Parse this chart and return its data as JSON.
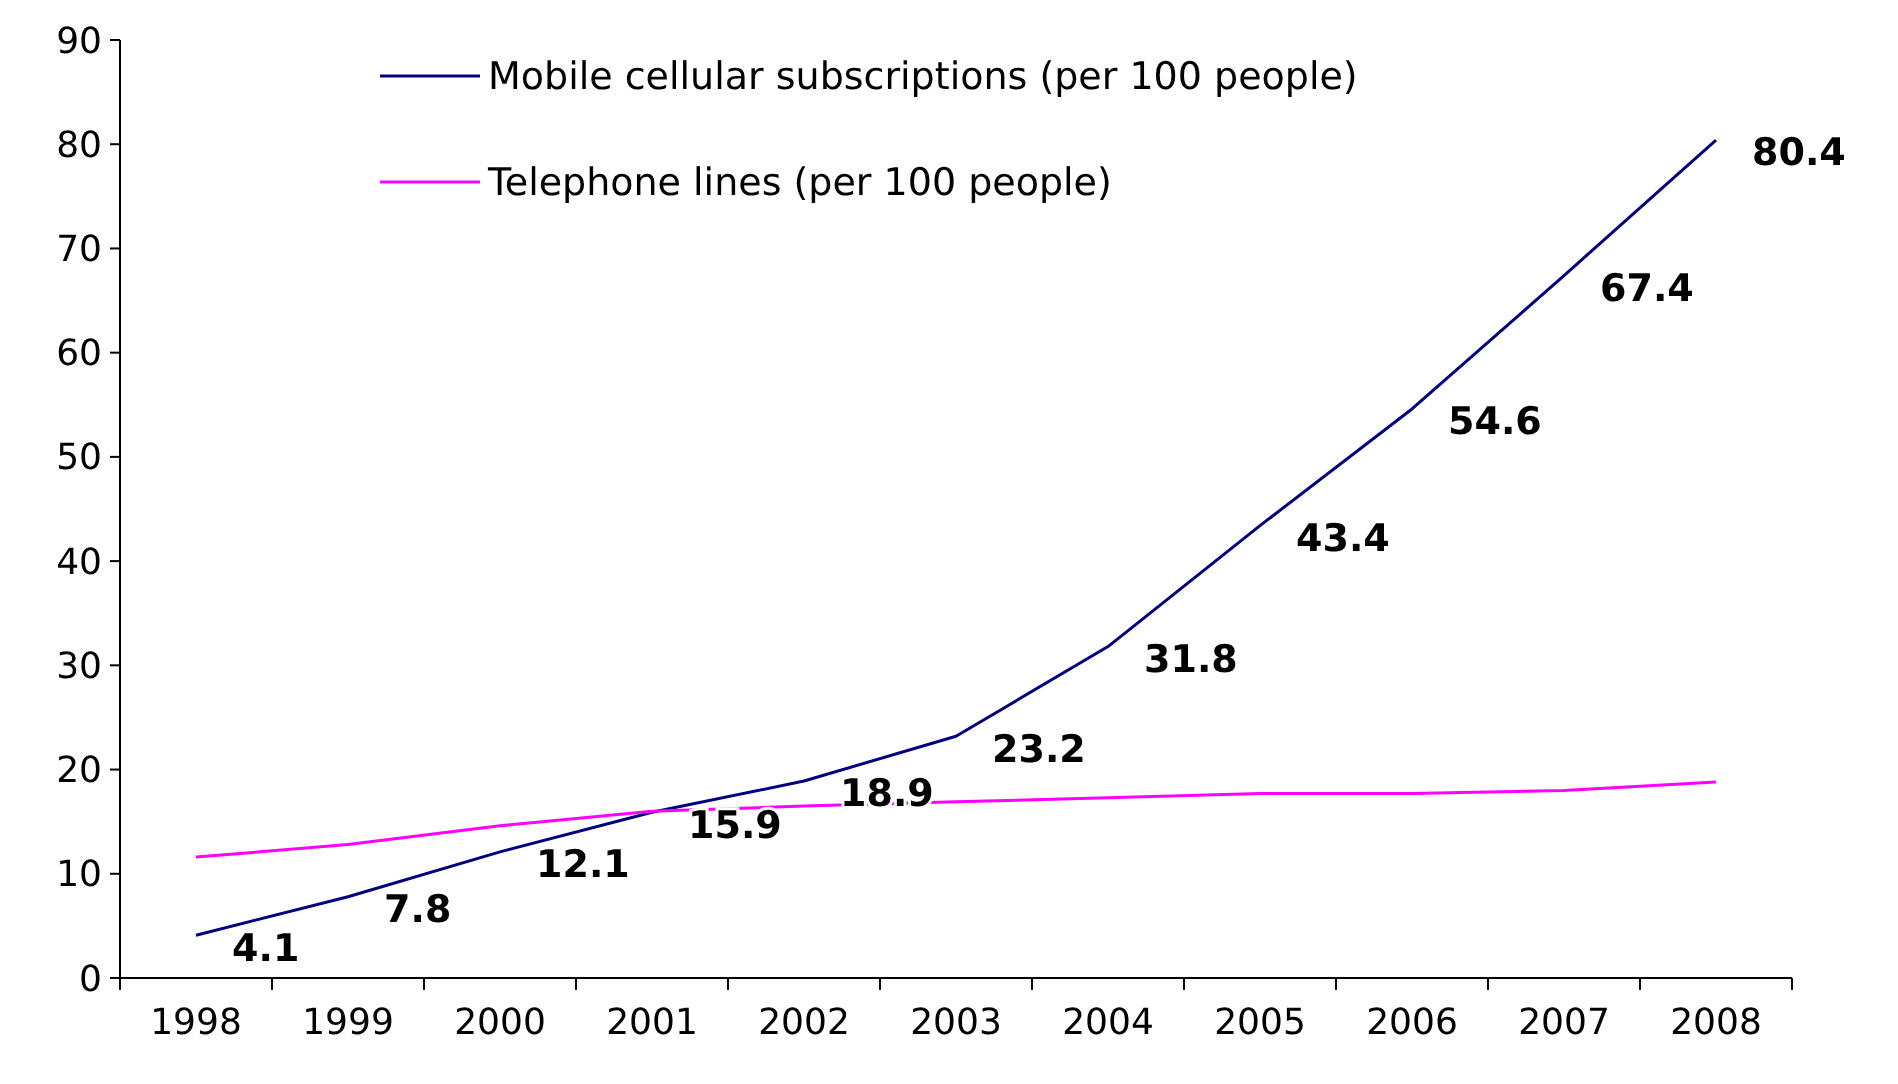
{
  "chart_data": {
    "type": "line",
    "categories": [
      "1998",
      "1999",
      "2000",
      "2001",
      "2002",
      "2003",
      "2004",
      "2005",
      "2006",
      "2007",
      "2008"
    ],
    "series": [
      {
        "name": "Mobile cellular subscriptions (per 100 people)",
        "color": "#000080",
        "values": [
          4.1,
          7.8,
          12.1,
          15.9,
          18.9,
          23.2,
          31.8,
          43.4,
          54.6,
          67.4,
          80.4
        ],
        "value_labels": [
          "4.1",
          "7.8",
          "12.1",
          "15.9",
          "18.9",
          "23.2",
          "31.8",
          "43.4",
          "54.6",
          "67.4",
          "80.4"
        ]
      },
      {
        "name": "Telephone lines (per 100 people)",
        "color": "#ff00ff",
        "values": [
          11.6,
          12.8,
          14.6,
          16.0,
          16.5,
          16.9,
          17.3,
          17.7,
          17.7,
          18.0,
          18.8
        ]
      }
    ],
    "ylim": [
      0,
      90
    ],
    "yticks": [
      0,
      10,
      20,
      30,
      40,
      50,
      60,
      70,
      80,
      90
    ],
    "grid": false,
    "legend": "top",
    "marker": "none",
    "line_style": "solid"
  }
}
